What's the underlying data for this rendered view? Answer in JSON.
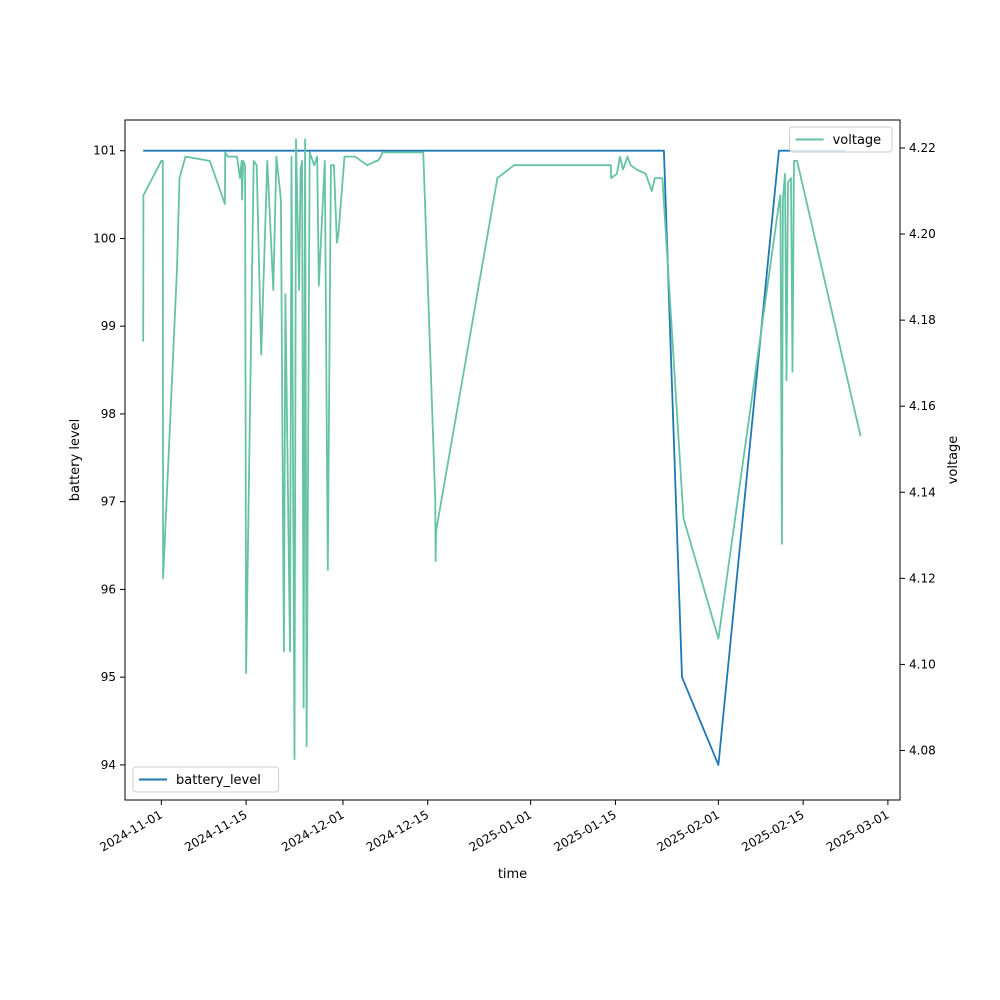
{
  "chart_data": {
    "type": "line",
    "title": "",
    "xlabel": "time",
    "ylabel_left": "battery level",
    "ylabel_right": "voltage",
    "grid": false,
    "x_range": [
      "2024-10-26",
      "2025-03-03"
    ],
    "x_ticks": [
      "2024-11-01",
      "2024-11-15",
      "2024-12-01",
      "2024-12-15",
      "2025-01-01",
      "2025-01-15",
      "2025-02-01",
      "2025-02-15",
      "2025-03-01"
    ],
    "left_axis": {
      "ylim": [
        93.6,
        101.35
      ],
      "ticks": [
        94,
        95,
        96,
        97,
        98,
        99,
        100,
        101
      ]
    },
    "right_axis": {
      "ylim": [
        4.0685,
        4.2265
      ],
      "ticks": [
        "4.08",
        "4.10",
        "4.12",
        "4.14",
        "4.16",
        "4.18",
        "4.20",
        "4.22"
      ]
    },
    "legends": [
      {
        "series": "battery_level",
        "placement": "lower-left"
      },
      {
        "series": "voltage",
        "placement": "upper-right"
      }
    ],
    "series": [
      {
        "name": "battery_level",
        "axis": "left",
        "color": "#1f77b4",
        "x": [
          "2024-10-29",
          "2025-01-23",
          "2025-01-26",
          "2025-02-01",
          "2025-02-11",
          "2025-02-11",
          "2025-02-22"
        ],
        "values": [
          101,
          101,
          95,
          94,
          101,
          101,
          101
        ]
      },
      {
        "name": "voltage",
        "axis": "right",
        "color": "#66c2a5",
        "x": [
          "2024-10-29 00:00",
          "2024-10-29 01:00",
          "2024-11-01 00:00",
          "2024-11-01 06:00",
          "2024-11-01 07:00",
          "2024-11-03 14:00",
          "2024-11-04 00:00",
          "2024-11-05 00:00",
          "2024-11-09 00:00",
          "2024-11-11 12:00",
          "2024-11-11 13:00",
          "2024-11-12 00:00",
          "2024-11-13 12:00",
          "2024-11-14 00:00",
          "2024-11-14 06:00",
          "2024-11-14 08:00",
          "2024-11-14 12:00",
          "2024-11-14 20:00",
          "2024-11-15 00:00",
          "2024-11-16 06:00",
          "2024-11-16 18:00",
          "2024-11-17 12:00",
          "2024-11-18 12:00",
          "2024-11-19 12:00",
          "2024-11-20 00:00",
          "2024-11-20 18:00",
          "2024-11-21 06:00",
          "2024-11-21 12:00",
          "2024-11-22 06:00",
          "2024-11-22 12:00",
          "2024-11-23 00:00",
          "2024-11-23 06:00",
          "2024-11-23 18:00",
          "2024-11-24 00:00",
          "2024-11-24 06:00",
          "2024-11-24 12:00",
          "2024-11-24 18:00",
          "2024-11-25 00:00",
          "2024-11-25 12:00",
          "2024-11-26 00:00",
          "2024-11-26 06:00",
          "2024-11-26 12:00",
          "2024-11-26 18:00",
          "2024-11-27 00:00",
          "2024-11-28 00:00",
          "2024-11-28 12:00",
          "2024-11-29 00:00",
          "2024-11-29 12:00",
          "2024-11-30 00:00",
          "2024-11-30 06:00",
          "2024-12-01 06:00",
          "2024-12-01 12:00",
          "2024-12-03 00:00",
          "2024-12-05 00:00",
          "2024-12-06 12:00",
          "2024-12-06 18:00",
          "2024-12-07 06:00",
          "2024-12-07 12:00",
          "2024-12-14 06:00",
          "2024-12-14 07:00",
          "2024-12-16 06:00",
          "2024-12-16 07:00",
          "2024-12-16 09:00",
          "2024-12-26 12:00",
          "2024-12-29 06:00",
          "2025-01-14 06:00",
          "2025-01-14 07:00",
          "2025-01-15 06:00",
          "2025-01-15 12:00",
          "2025-01-15 18:00",
          "2025-01-16 06:00",
          "2025-01-17 00:00",
          "2025-01-17 06:00",
          "2025-01-17 12:00",
          "2025-01-18 12:00",
          "2025-01-20 00:00",
          "2025-01-21 00:00",
          "2025-01-21 12:00",
          "2025-01-22 12:00",
          "2025-01-22 18:00",
          "2025-01-26 06:00",
          "2025-02-01 00:00",
          "2025-02-11 00:00",
          "2025-02-11 06:00",
          "2025-02-11 12:00",
          "2025-02-11 16:00",
          "2025-02-12 00:00",
          "2025-02-12 06:00",
          "2025-02-12 12:00",
          "2025-02-13 00:00",
          "2025-02-13 06:00",
          "2025-02-13 12:00",
          "2025-02-13 18:00",
          "2025-02-14 00:00",
          "2025-02-24 12:00"
        ],
        "values": [
          4.175,
          4.209,
          4.217,
          4.217,
          4.12,
          4.192,
          4.213,
          4.218,
          4.217,
          4.207,
          4.219,
          4.218,
          4.218,
          4.213,
          4.217,
          4.208,
          4.217,
          4.216,
          4.098,
          4.217,
          4.216,
          4.172,
          4.217,
          4.187,
          4.218,
          4.208,
          4.103,
          4.186,
          4.103,
          4.218,
          4.078,
          4.222,
          4.187,
          4.215,
          4.217,
          4.09,
          4.222,
          4.081,
          4.219,
          4.217,
          4.216,
          4.217,
          4.218,
          4.188,
          4.217,
          4.122,
          4.216,
          4.216,
          4.198,
          4.2,
          4.218,
          4.218,
          4.218,
          4.216,
          4.217,
          4.217,
          4.218,
          4.219,
          4.219,
          4.218,
          4.138,
          4.124,
          4.131,
          4.213,
          4.216,
          4.216,
          4.213,
          4.214,
          4.216,
          4.218,
          4.215,
          4.218,
          4.217,
          4.216,
          4.215,
          4.214,
          4.21,
          4.213,
          4.213,
          4.213,
          4.134,
          4.106,
          4.207,
          4.209,
          4.128,
          4.208,
          4.214,
          4.166,
          4.212,
          4.213,
          4.168,
          4.217,
          4.217,
          4.217,
          4.153
        ]
      }
    ]
  }
}
